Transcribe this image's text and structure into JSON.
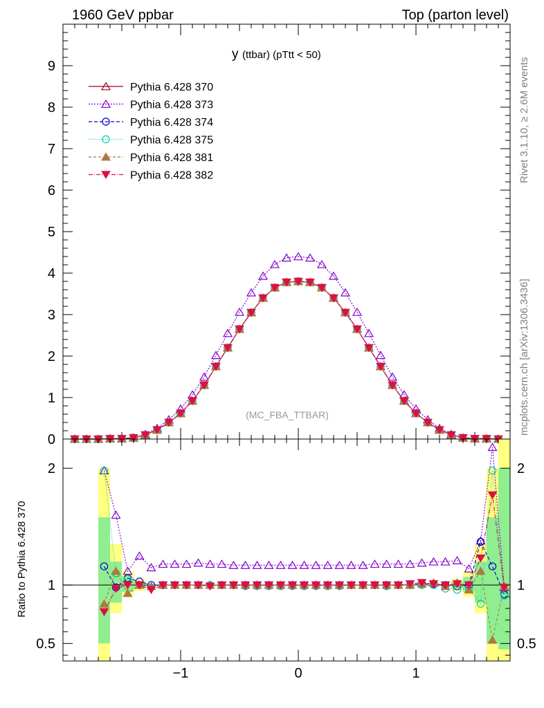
{
  "header": {
    "left": "1960 GeV ppbar",
    "right": "Top (parton level)"
  },
  "side_labels": {
    "rivet": "Rivet 3.1.10, ≥ 2.6M events",
    "mcplots": "mcplots.cern.ch [arXiv:1306.3436]"
  },
  "chart_data": [
    {
      "type": "line",
      "title_main": "y",
      "title_rest": "(ttbar)  (pTtt < 50)",
      "watermark": "(MC_FBA_TTBAR)",
      "xlim": [
        -2,
        1.8
      ],
      "ylim": [
        0,
        10
      ],
      "y_ticks": [
        "0",
        "1",
        "2",
        "3",
        "4",
        "5",
        "6",
        "7",
        "8",
        "9"
      ],
      "x_ticks": [
        "−1",
        "0",
        "1"
      ],
      "x": [
        -1.9,
        -1.8,
        -1.7,
        -1.6,
        -1.5,
        -1.4,
        -1.3,
        -1.2,
        -1.1,
        -1.0,
        -0.9,
        -0.8,
        -0.7,
        -0.6,
        -0.5,
        -0.4,
        -0.3,
        -0.2,
        -0.1,
        0.0,
        0.1,
        0.2,
        0.3,
        0.4,
        0.5,
        0.6,
        0.7,
        0.8,
        0.9,
        1.0,
        1.1,
        1.2,
        1.3,
        1.4,
        1.5,
        1.6,
        1.7
      ],
      "series": [
        {
          "name": "Pythia 6.428 370",
          "color": "#a00020",
          "marker": "triangle-open",
          "dash": "",
          "values": [
            0.0,
            0.0,
            0.0,
            0.01,
            0.01,
            0.03,
            0.1,
            0.22,
            0.4,
            0.62,
            0.92,
            1.3,
            1.75,
            2.2,
            2.65,
            3.05,
            3.4,
            3.65,
            3.78,
            3.8,
            3.78,
            3.65,
            3.4,
            3.05,
            2.65,
            2.2,
            1.75,
            1.3,
            0.92,
            0.62,
            0.4,
            0.22,
            0.1,
            0.03,
            0.01,
            0.01,
            0.0
          ]
        },
        {
          "name": "Pythia 6.428 373",
          "color": "#8000cc",
          "marker": "triangle-open",
          "dash": "2,2",
          "values": [
            0.0,
            0.0,
            0.0,
            0.01,
            0.01,
            0.03,
            0.12,
            0.26,
            0.47,
            0.73,
            1.07,
            1.5,
            2.02,
            2.55,
            3.06,
            3.53,
            3.93,
            4.21,
            4.37,
            4.4,
            4.37,
            4.21,
            3.93,
            3.53,
            3.06,
            2.55,
            2.02,
            1.5,
            1.07,
            0.73,
            0.47,
            0.26,
            0.12,
            0.03,
            0.01,
            0.01,
            0.0
          ]
        },
        {
          "name": "Pythia 6.428 374",
          "color": "#0000cc",
          "marker": "circle-open",
          "dash": "5,3",
          "values": [
            0.0,
            0.0,
            0.0,
            0.01,
            0.01,
            0.03,
            0.1,
            0.22,
            0.4,
            0.62,
            0.92,
            1.3,
            1.75,
            2.2,
            2.65,
            3.05,
            3.4,
            3.65,
            3.78,
            3.8,
            3.78,
            3.65,
            3.4,
            3.05,
            2.65,
            2.2,
            1.75,
            1.3,
            0.92,
            0.62,
            0.4,
            0.22,
            0.1,
            0.03,
            0.01,
            0.01,
            0.0
          ]
        },
        {
          "name": "Pythia 6.428 375",
          "color": "#00ccbb",
          "marker": "circle-open",
          "dash": "1,2",
          "values": [
            0.0,
            0.0,
            0.0,
            0.01,
            0.01,
            0.03,
            0.1,
            0.22,
            0.4,
            0.62,
            0.92,
            1.3,
            1.75,
            2.2,
            2.65,
            3.05,
            3.4,
            3.65,
            3.78,
            3.8,
            3.78,
            3.65,
            3.4,
            3.05,
            2.65,
            2.2,
            1.75,
            1.3,
            0.92,
            0.62,
            0.4,
            0.22,
            0.1,
            0.03,
            0.01,
            0.01,
            0.0
          ]
        },
        {
          "name": "Pythia 6.428 381",
          "color": "#b07840",
          "marker": "triangle-filled",
          "dash": "4,3",
          "values": [
            0.0,
            0.0,
            0.0,
            0.01,
            0.01,
            0.03,
            0.1,
            0.22,
            0.4,
            0.62,
            0.92,
            1.3,
            1.75,
            2.2,
            2.65,
            3.05,
            3.4,
            3.65,
            3.78,
            3.8,
            3.78,
            3.65,
            3.4,
            3.05,
            2.65,
            2.2,
            1.75,
            1.3,
            0.92,
            0.62,
            0.4,
            0.22,
            0.1,
            0.03,
            0.01,
            0.01,
            0.0
          ]
        },
        {
          "name": "Pythia 6.428 382",
          "color": "#dd1040",
          "marker": "triangle-down-filled",
          "dash": "6,2,1,2",
          "values": [
            0.0,
            0.0,
            0.0,
            0.01,
            0.01,
            0.03,
            0.1,
            0.22,
            0.4,
            0.62,
            0.92,
            1.3,
            1.75,
            2.2,
            2.65,
            3.05,
            3.4,
            3.65,
            3.78,
            3.8,
            3.78,
            3.65,
            3.4,
            3.05,
            2.65,
            2.2,
            1.75,
            1.3,
            0.92,
            0.62,
            0.4,
            0.22,
            0.1,
            0.03,
            0.01,
            0.01,
            0.0
          ]
        }
      ]
    },
    {
      "type": "line",
      "ylabel": "Ratio to Pythia 6.428 370",
      "xlim": [
        -2,
        1.8
      ],
      "ylim": [
        0.35,
        2.25
      ],
      "reference": 1,
      "y_ticks": [
        {
          "value": 0.5,
          "label": "0.5"
        },
        {
          "value": 1,
          "label": "1"
        },
        {
          "value": 2,
          "label": "2"
        }
      ],
      "x_ticks": [
        "−1",
        "0",
        "1"
      ],
      "x": [
        -1.65,
        -1.55,
        -1.45,
        -1.35,
        -1.25,
        -1.15,
        -1.05,
        -0.95,
        -0.85,
        -0.75,
        -0.65,
        -0.55,
        -0.45,
        -0.35,
        -0.25,
        -0.15,
        -0.05,
        0.05,
        0.15,
        0.25,
        0.35,
        0.45,
        0.55,
        0.65,
        0.75,
        0.85,
        0.95,
        1.05,
        1.15,
        1.25,
        1.35,
        1.45,
        1.55,
        1.65,
        1.75
      ],
      "bands": [
        {
          "x0": -1.7,
          "x1": -1.6,
          "yellow": [
            0.3,
            2.0
          ],
          "green": [
            0.5,
            1.58
          ]
        },
        {
          "x0": -1.6,
          "x1": -1.5,
          "yellow": [
            0.76,
            1.35
          ],
          "green": [
            0.85,
            1.2
          ]
        },
        {
          "x0": -1.5,
          "x1": -1.4,
          "yellow": [
            0.9,
            1.12
          ],
          "green": [
            0.94,
            1.07
          ]
        },
        {
          "x0": -1.4,
          "x1": -1.3,
          "yellow": [
            0.95,
            1.05
          ],
          "green": [
            0.97,
            1.03
          ]
        },
        {
          "x0": 1.3,
          "x1": 1.4,
          "yellow": [
            0.95,
            1.05
          ],
          "green": [
            0.97,
            1.03
          ]
        },
        {
          "x0": 1.4,
          "x1": 1.5,
          "yellow": [
            0.9,
            1.12
          ],
          "green": [
            0.94,
            1.07
          ]
        },
        {
          "x0": 1.5,
          "x1": 1.6,
          "yellow": [
            0.76,
            1.35
          ],
          "green": [
            0.85,
            1.2
          ]
        },
        {
          "x0": 1.6,
          "x1": 1.7,
          "yellow": [
            0.3,
            2.0
          ],
          "green": [
            0.5,
            1.58
          ]
        },
        {
          "x0": 1.7,
          "x1": 1.8,
          "yellow": [
            0.3,
            2.3
          ],
          "green": [
            0.45,
            2.0
          ]
        }
      ],
      "series": [
        {
          "name": "Pythia 6.428 373",
          "color": "#8000cc",
          "marker": "triangle-open",
          "dash": "2,2",
          "values": [
            1.98,
            1.6,
            1.12,
            1.25,
            1.15,
            1.18,
            1.18,
            1.18,
            1.19,
            1.18,
            1.18,
            1.17,
            1.17,
            1.17,
            1.17,
            1.17,
            1.17,
            1.17,
            1.17,
            1.17,
            1.17,
            1.17,
            1.17,
            1.18,
            1.18,
            1.18,
            1.18,
            1.19,
            1.2,
            1.2,
            1.21,
            1.14,
            1.38,
            2.18,
            0.98
          ]
        },
        {
          "name": "Pythia 6.428 374",
          "color": "#0000cc",
          "marker": "circle-open",
          "dash": "5,3",
          "values": [
            1.16,
            0.98,
            1.06,
            1.03,
            1.0,
            1.0,
            1.0,
            1.0,
            1.0,
            1.0,
            1.0,
            1.0,
            1.0,
            1.0,
            1.0,
            1.0,
            1.0,
            1.0,
            1.0,
            1.0,
            1.0,
            1.0,
            1.0,
            1.0,
            1.0,
            1.0,
            1.0,
            1.01,
            1.01,
            1.0,
            0.99,
            1.0,
            1.37,
            1.16,
            0.92
          ]
        },
        {
          "name": "Pythia 6.428 375",
          "color": "#00ccbb",
          "marker": "circle-open",
          "dash": "1,2",
          "values": [
            1.98,
            1.1,
            1.05,
            1.0,
            0.98,
            1.0,
            1.0,
            1.0,
            1.0,
            1.0,
            1.0,
            1.0,
            0.99,
            0.99,
            0.99,
            0.99,
            0.99,
            0.99,
            0.99,
            0.99,
            0.99,
            1.0,
            1.0,
            1.0,
            0.99,
            1.0,
            1.0,
            1.0,
            1.0,
            0.97,
            0.96,
            0.97,
            0.84,
            1.98,
            0.91
          ]
        },
        {
          "name": "Pythia 6.428 381",
          "color": "#b07840",
          "marker": "triangle-filled",
          "dash": "4,3",
          "values": [
            0.84,
            1.12,
            0.93,
            1.0,
            0.99,
            1.0,
            1.0,
            1.0,
            1.0,
            1.0,
            1.0,
            1.0,
            1.0,
            1.0,
            1.0,
            1.0,
            1.0,
            1.0,
            1.0,
            1.0,
            1.0,
            1.0,
            1.0,
            1.0,
            1.0,
            1.0,
            1.0,
            1.01,
            1.02,
            0.99,
            1.02,
            0.96,
            1.12,
            0.53,
            0.99
          ]
        },
        {
          "name": "Pythia 6.428 382",
          "color": "#dd1040",
          "marker": "triangle-down-filled",
          "dash": "6,2,1,2",
          "values": [
            0.77,
            0.97,
            1.0,
            1.0,
            0.96,
            1.0,
            1.0,
            1.0,
            1.0,
            0.99,
            1.0,
            1.0,
            1.0,
            1.0,
            1.0,
            1.0,
            1.0,
            1.0,
            1.0,
            1.0,
            1.0,
            1.0,
            1.0,
            1.0,
            1.0,
            1.0,
            1.01,
            1.02,
            1.01,
            1.0,
            1.01,
            1.0,
            1.23,
            1.77,
            0.98
          ]
        }
      ]
    }
  ]
}
